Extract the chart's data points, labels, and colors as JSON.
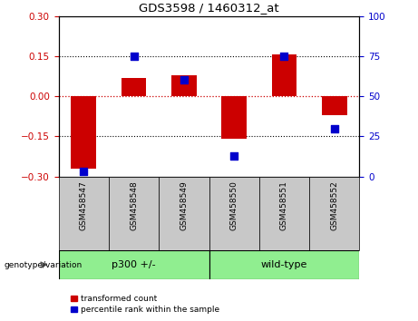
{
  "title": "GDS3598 / 1460312_at",
  "samples": [
    "GSM458547",
    "GSM458548",
    "GSM458549",
    "GSM458550",
    "GSM458551",
    "GSM458552"
  ],
  "red_values": [
    -0.27,
    0.07,
    0.08,
    -0.16,
    0.155,
    -0.07
  ],
  "blue_values": [
    3,
    75,
    60,
    13,
    75,
    30
  ],
  "ylim": [
    -0.3,
    0.3
  ],
  "y2lim": [
    0,
    100
  ],
  "yticks": [
    -0.3,
    -0.15,
    0,
    0.15,
    0.3
  ],
  "y2ticks": [
    0,
    25,
    50,
    75,
    100
  ],
  "red_color": "#CC0000",
  "blue_color": "#0000CC",
  "bar_width": 0.5,
  "dot_size": 28,
  "dotted_color": "black",
  "group_label": "genotype/variation",
  "legend_red": "transformed count",
  "legend_blue": "percentile rank within the sample",
  "xtick_bg": "#C8C8C8",
  "group_bg": "#90EE90",
  "groups": [
    {
      "label": "p300 +/-",
      "start": 0,
      "end": 3
    },
    {
      "label": "wild-type",
      "start": 3,
      "end": 6
    }
  ]
}
